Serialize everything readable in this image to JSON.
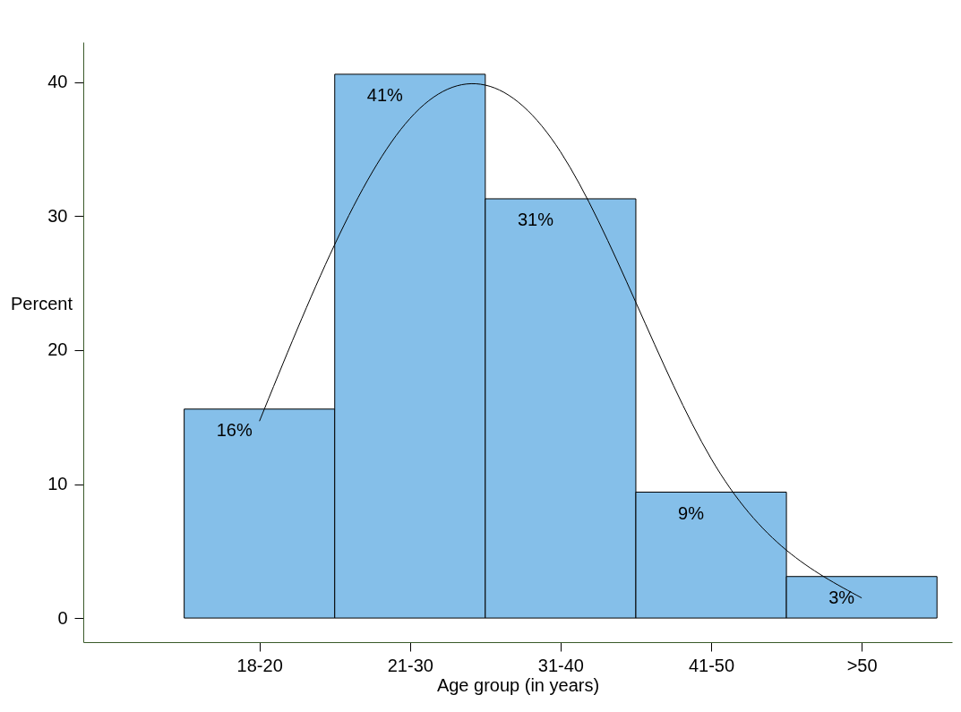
{
  "chart_data": {
    "type": "bar",
    "xlabel": "Age group (in years)",
    "ylabel": "Percent",
    "categories": [
      "18-20",
      "21-30",
      "31-40",
      "41-50",
      ">50"
    ],
    "ylim": [
      -1.8,
      43
    ],
    "yticks": [
      0,
      10,
      20,
      30,
      40
    ],
    "grid": false,
    "series": [
      {
        "color": "#85bfe9",
        "values": [
          15.6,
          40.6,
          31.3,
          9.4,
          3.1
        ],
        "value_labels": [
          "16%",
          "41%",
          "31%",
          "9%",
          "3%"
        ]
      },
      {
        "type": "line",
        "color": "#000000",
        "values": [
          14.7,
          37.3,
          34.8,
          11.9,
          1.5
        ]
      }
    ]
  }
}
